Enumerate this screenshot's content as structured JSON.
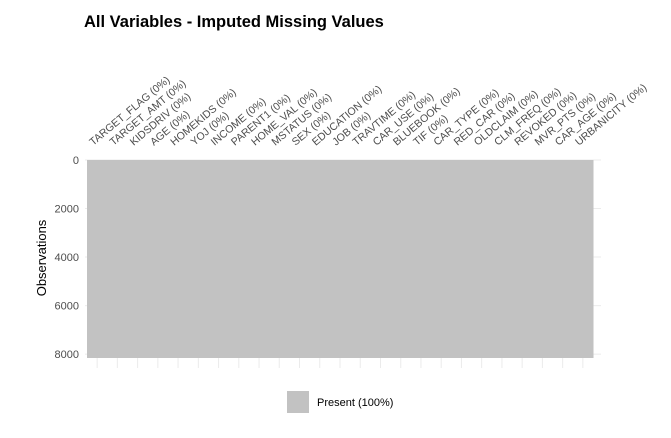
{
  "chart_data": {
    "type": "heatmap",
    "title": "All Variables - Imputed Missing Values",
    "xlabel": "",
    "ylabel": "Observations",
    "columns": [
      "TARGET_FLAG (0%)",
      "TARGET_AMT (0%)",
      "KIDSDRIV (0%)",
      "AGE (0%)",
      "HOMEKIDS (0%)",
      "YOJ (0%)",
      "INCOME (0%)",
      "PARENT1 (0%)",
      "HOME_VAL (0%)",
      "MSTATUS (0%)",
      "SEX (0%)",
      "EDUCATION (0%)",
      "JOB (0%)",
      "TRAVTIME (0%)",
      "CAR_USE (0%)",
      "BLUEBOOK (0%)",
      "TIF (0%)",
      "CAR_TYPE (0%)",
      "RED_CAR (0%)",
      "OLDCLAIM (0%)",
      "CLM_FREQ (0%)",
      "REVOKED (0%)",
      "MVR_PTS (0%)",
      "CAR_AGE (0%)",
      "URBANICITY (0%)"
    ],
    "y_ticks": [
      0,
      2000,
      4000,
      6000,
      8000
    ],
    "y_tick_labels": [
      "0",
      "2000",
      "4000",
      "6000",
      "8000"
    ],
    "y_reversed": true,
    "observations": 8161,
    "cells": [
      {
        "state": "Present",
        "percent": 100
      }
    ],
    "legend": {
      "position": "bottom",
      "entries": [
        {
          "label": "Present (100%)",
          "color": "#c2c2c2"
        }
      ]
    },
    "colors": {
      "present": "#c2c2c2",
      "grid": "#ebebeb",
      "tick_text": "#4d4d4d",
      "title_text": "#000000"
    },
    "grid": true
  }
}
